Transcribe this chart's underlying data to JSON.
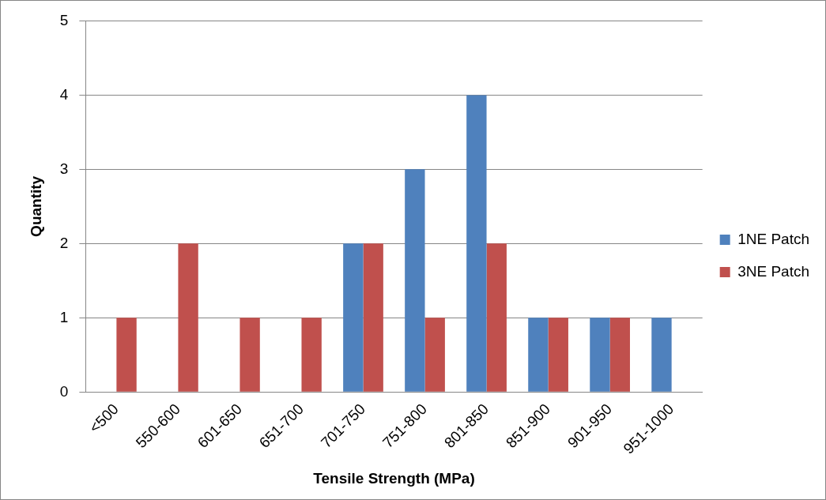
{
  "chart_data": {
    "type": "bar",
    "xlabel": "Tensile Strength (MPa)",
    "ylabel": "Quantity",
    "categories": [
      "<500",
      "550-600",
      "601-650",
      "651-700",
      "701-750",
      "751-800",
      "801-850",
      "851-900",
      "901-950",
      "951-1000"
    ],
    "series": [
      {
        "name": "1NE Patch",
        "color": "#4f81bd",
        "values": [
          0,
          0,
          0,
          0,
          2,
          3,
          4,
          1,
          1,
          1
        ]
      },
      {
        "name": "3NE Patch",
        "color": "#c0504d",
        "values": [
          1,
          2,
          1,
          1,
          2,
          1,
          2,
          1,
          1,
          0
        ]
      }
    ],
    "ylim": [
      0,
      5
    ],
    "yticks": [
      0,
      1,
      2,
      3,
      4,
      5
    ],
    "grid": "y",
    "legend": "right"
  }
}
